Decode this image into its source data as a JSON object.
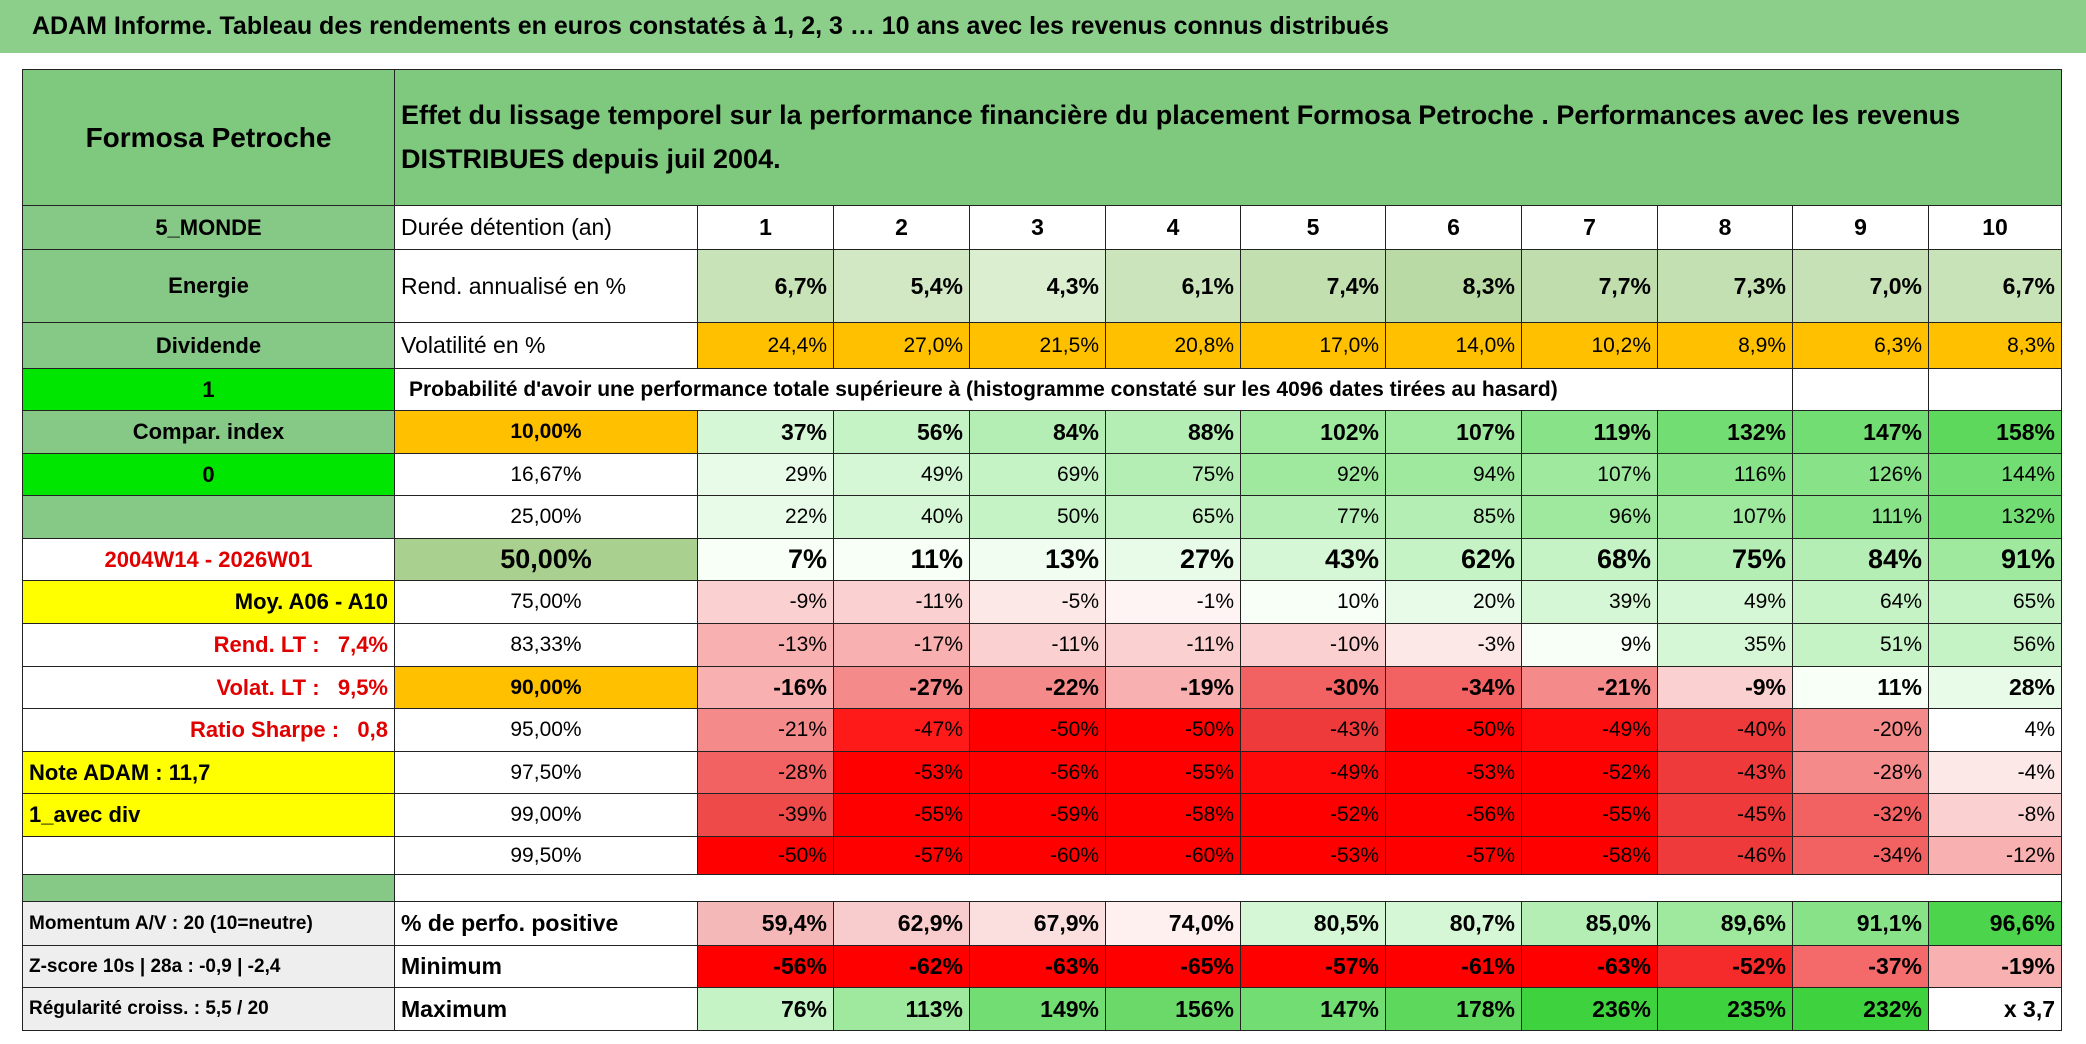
{
  "title": "ADAM Informe. Tableau des rendements en euros constatés à 1, 2, 3 … 10 ans avec les revenus connus distribués",
  "header": {
    "left": "Formosa Petroche",
    "text": "Effet du lissage temporel sur la performance financière du placement Formosa Petroche . Performances avec les revenus DISTRIBUES depuis juil 2004."
  },
  "rows": [
    {
      "left": "5_MONDE",
      "label": "Durée détention (an)",
      "cells": [
        1,
        2,
        3,
        4,
        5,
        6,
        7,
        8,
        9,
        10
      ]
    },
    {
      "left": "Energie",
      "label": "Rend. annualisé en %",
      "cells": [
        "6,7%",
        "5,4%",
        "4,3%",
        "6,1%",
        "7,4%",
        "8,3%",
        "7,7%",
        "7,3%",
        "7,0%",
        "6,7%"
      ],
      "fills": [
        "#c9e3b9",
        "#d2e8c4",
        "#dbeed0",
        "#cce4bc",
        "#c2dfb0",
        "#b9daa5",
        "#bfddad",
        "#c3e0b2",
        "#c6e1b5",
        "#c9e3b9"
      ]
    },
    {
      "left": "Dividende",
      "label": "Volatilité en %",
      "cells": [
        "24,4%",
        "27,0%",
        "21,5%",
        "20,8%",
        "17,0%",
        "14,0%",
        "10,2%",
        "8,9%",
        "6,3%",
        "8,3%"
      ],
      "fills": [
        "#ffc000",
        "#ffc000",
        "#ffc000",
        "#ffc000",
        "#ffc000",
        "#ffc000",
        "#ffc000",
        "#ffc000",
        "#ffc000",
        "#ffc000"
      ]
    },
    {
      "left": "1",
      "label": "Probabilité d'avoir une performance totale supérieure à (histogramme constaté sur les 4096 dates tirées au hasard)"
    },
    {
      "left": "Compar. index",
      "label": "10,00%",
      "cells": [
        "37%",
        "56%",
        "84%",
        "88%",
        "102%",
        "107%",
        "119%",
        "132%",
        "147%",
        "158%"
      ],
      "fills": [
        "#d6f7d6",
        "#c6f3c6",
        "#b4eeb4",
        "#b4eeb4",
        "#9ee99e",
        "#9ee99e",
        "#88e388",
        "#72dd72",
        "#72dd72",
        "#5dd85d"
      ]
    },
    {
      "left": "0",
      "label": "16,67%",
      "cells": [
        "29%",
        "49%",
        "69%",
        "75%",
        "92%",
        "94%",
        "107%",
        "116%",
        "126%",
        "144%"
      ],
      "fills": [
        "#e8fbe8",
        "#d6f7d6",
        "#c6f3c6",
        "#b4eeb4",
        "#9ee99e",
        "#9ee99e",
        "#9ee99e",
        "#88e388",
        "#88e388",
        "#72dd72"
      ]
    },
    {
      "label": "25,00%",
      "cells": [
        "22%",
        "40%",
        "50%",
        "65%",
        "77%",
        "85%",
        "96%",
        "107%",
        "111%",
        "132%"
      ],
      "fills": [
        "#e8fbe8",
        "#d6f7d6",
        "#c6f3c6",
        "#c6f3c6",
        "#b4eeb4",
        "#b4eeb4",
        "#9ee99e",
        "#9ee99e",
        "#88e388",
        "#72dd72"
      ]
    },
    {
      "left": "2004W14 - 2026W01",
      "label": "50,00%",
      "cells": [
        "7%",
        "11%",
        "13%",
        "27%",
        "43%",
        "62%",
        "68%",
        "75%",
        "84%",
        "91%"
      ],
      "fills": [
        "#f7fff7",
        "#f7fff7",
        "#f0fdf0",
        "#e8fbe8",
        "#d6f7d6",
        "#c6f3c6",
        "#c6f3c6",
        "#b4eeb4",
        "#b4eeb4",
        "#9ee99e"
      ]
    },
    {
      "left": "Moy. A06 - A10",
      "label": "75,00%",
      "cells": [
        "-9%",
        "-11%",
        "-5%",
        "-1%",
        "10%",
        "20%",
        "39%",
        "49%",
        "64%",
        "65%"
      ],
      "fills": [
        "#fbd0d0",
        "#fbd0d0",
        "#fde8e8",
        "#fff4f4",
        "#f7fff7",
        "#e8fbe8",
        "#d6f7d6",
        "#d6f7d6",
        "#c6f3c6",
        "#c6f3c6"
      ]
    },
    {
      "left": "Rend. LT :   7,4%",
      "label": "83,33%",
      "cells": [
        "-13%",
        "-17%",
        "-11%",
        "-11%",
        "-10%",
        "-3%",
        "9%",
        "35%",
        "51%",
        "56%"
      ],
      "fills": [
        "#f9b0b0",
        "#f9b0b0",
        "#fbd0d0",
        "#fbd0d0",
        "#fbd0d0",
        "#fde8e8",
        "#f7fff7",
        "#d6f7d6",
        "#c6f3c6",
        "#c6f3c6"
      ]
    },
    {
      "left": "Volat. LT :   9,5%",
      "label": "90,00%",
      "cells": [
        "-16%",
        "-27%",
        "-22%",
        "-19%",
        "-30%",
        "-34%",
        "-21%",
        "-9%",
        "11%",
        "28%"
      ],
      "fills": [
        "#f9b0b0",
        "#f58a8a",
        "#f58a8a",
        "#f9b0b0",
        "#f26262",
        "#f26262",
        "#f58a8a",
        "#fbd0d0",
        "#f7fff7",
        "#e8fbe8"
      ]
    },
    {
      "left": "Ratio Sharpe :   0,8",
      "label": "95,00%",
      "cells": [
        "-21%",
        "-47%",
        "-50%",
        "-50%",
        "-43%",
        "-50%",
        "-49%",
        "-40%",
        "-20%",
        "4%"
      ],
      "fills": [
        "#f58a8a",
        "#ff1a1a",
        "#ff0000",
        "#ff0000",
        "#ee3a3a",
        "#ff0000",
        "#ff0a0a",
        "#ee3a3a",
        "#f58a8a",
        "#ffffff"
      ]
    },
    {
      "left": "Note ADAM : 11,7",
      "label": "97,50%",
      "cells": [
        "-28%",
        "-53%",
        "-56%",
        "-55%",
        "-49%",
        "-53%",
        "-52%",
        "-43%",
        "-28%",
        "-4%"
      ],
      "fills": [
        "#f26262",
        "#ff0000",
        "#ff0000",
        "#ff0000",
        "#ff0a0a",
        "#ff0000",
        "#ff0000",
        "#ee3a3a",
        "#f58a8a",
        "#fde8e8"
      ]
    },
    {
      "left": "1_avec div",
      "label": "99,00%",
      "cells": [
        "-39%",
        "-55%",
        "-59%",
        "-58%",
        "-52%",
        "-56%",
        "-55%",
        "-45%",
        "-32%",
        "-8%"
      ],
      "fills": [
        "#ee4a4a",
        "#ff0000",
        "#ff0000",
        "#ff0000",
        "#ff0000",
        "#ff0000",
        "#ff0000",
        "#ee3a3a",
        "#f26262",
        "#fbd0d0"
      ]
    },
    {
      "label": "99,50%",
      "cells": [
        "-50%",
        "-57%",
        "-60%",
        "-60%",
        "-53%",
        "-57%",
        "-58%",
        "-46%",
        "-34%",
        "-12%"
      ],
      "fills": [
        "#ff0000",
        "#ff0000",
        "#ff0000",
        "#ff0000",
        "#ff0000",
        "#ff0000",
        "#ff0000",
        "#ee3a3a",
        "#f26262",
        "#f9b0b0"
      ]
    },
    {
      "left": "Momentum A/V : 20 (10=neutre)",
      "label": "% de perfo. positive",
      "cells": [
        "59,4%",
        "62,9%",
        "67,9%",
        "74,0%",
        "80,5%",
        "80,7%",
        "85,0%",
        "89,6%",
        "91,1%",
        "96,6%"
      ],
      "fills": [
        "#f4b8b8",
        "#f8cccc",
        "#fbdede",
        "#fff0f0",
        "#d6f7d6",
        "#d6f7d6",
        "#b4eeb4",
        "#9ee99e",
        "#88e388",
        "#4cd44c"
      ]
    },
    {
      "left": "Z-score 10s | 28a : -0,9 | -2,4",
      "label": "Minimum",
      "cells": [
        "-56%",
        "-62%",
        "-63%",
        "-65%",
        "-57%",
        "-61%",
        "-63%",
        "-52%",
        "-37%",
        "-19%"
      ],
      "fills": [
        "#ff0000",
        "#ff0000",
        "#ff0000",
        "#ff0000",
        "#ff0000",
        "#ff0000",
        "#ff0000",
        "#f52a2a",
        "#f46a6a",
        "#f9b0b0"
      ]
    },
    {
      "left": "Régularité croiss. : 5,5 / 20",
      "label": "Maximum",
      "cells": [
        "76%",
        "113%",
        "149%",
        "156%",
        "147%",
        "178%",
        "236%",
        "235%",
        "232%",
        "x 3,7"
      ],
      "fills": [
        "#c6f3c6",
        "#9ee99e",
        "#72dd72",
        "#6ad96a",
        "#72dd72",
        "#5dd85d",
        "#3fd23f",
        "#3fd23f",
        "#3fd23f",
        "#ffffff"
      ]
    }
  ]
}
